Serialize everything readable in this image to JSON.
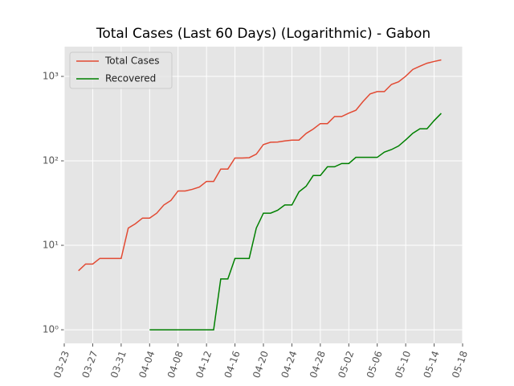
{
  "chart_data": {
    "type": "line",
    "title": "Total Cases (Last 60 Days) (Logarithmic) - Gabon",
    "x": [
      "03-25",
      "03-26",
      "03-27",
      "03-28",
      "03-29",
      "03-30",
      "03-31",
      "04-01",
      "04-02",
      "04-03",
      "04-04",
      "04-05",
      "04-06",
      "04-07",
      "04-08",
      "04-09",
      "04-10",
      "04-11",
      "04-12",
      "04-13",
      "04-14",
      "04-15",
      "04-16",
      "04-17",
      "04-18",
      "04-19",
      "04-20",
      "04-21",
      "04-22",
      "04-23",
      "04-24",
      "04-25",
      "04-26",
      "04-27",
      "04-28",
      "04-29",
      "04-30",
      "05-01",
      "05-02",
      "05-03",
      "05-04",
      "05-05",
      "05-06",
      "05-07",
      "05-08",
      "05-09",
      "05-10",
      "05-11",
      "05-12",
      "05-13",
      "05-14",
      "05-15"
    ],
    "series": [
      {
        "name": "Total Cases",
        "color": "#e24a33",
        "values": [
          5,
          6,
          6,
          7,
          7,
          7,
          7,
          16,
          18,
          21,
          21,
          24,
          30,
          34,
          44,
          44,
          46,
          49,
          57,
          57,
          80,
          80,
          108,
          108,
          109,
          120,
          156,
          166,
          167,
          172,
          176,
          176,
          211,
          238,
          276,
          276,
          335,
          335,
          367,
          397,
          504,
          620,
          661,
          661,
          803,
          863,
          1004,
          1209,
          1320,
          1432,
          1502,
          1567
        ]
      },
      {
        "name": "Recovered",
        "color": "#008000",
        "values": [
          null,
          null,
          null,
          null,
          null,
          null,
          null,
          null,
          null,
          null,
          1,
          1,
          1,
          1,
          1,
          1,
          1,
          1,
          1,
          1,
          4,
          4,
          7,
          7,
          7,
          16,
          24,
          24,
          26,
          30,
          30,
          43,
          50,
          67,
          67,
          85,
          85,
          93,
          93,
          110,
          110,
          110,
          110,
          127,
          136,
          150,
          177,
          212,
          240,
          240,
          300,
          365
        ]
      }
    ],
    "xlim": [
      "03-23",
      "05-18"
    ],
    "xticks": [
      "03-23",
      "03-27",
      "03-31",
      "04-04",
      "04-08",
      "04-12",
      "04-16",
      "04-20",
      "04-24",
      "04-28",
      "05-02",
      "05-06",
      "05-10",
      "05-14",
      "05-18"
    ],
    "ylim": [
      0.69,
      2250
    ],
    "yticks": [
      {
        "value": 1,
        "label": "10⁰"
      },
      {
        "value": 10,
        "label": "10¹"
      },
      {
        "value": 100,
        "label": "10²"
      },
      {
        "value": 1000,
        "label": "10³"
      }
    ],
    "log_y": true,
    "grid": true,
    "legend": "upper left"
  }
}
